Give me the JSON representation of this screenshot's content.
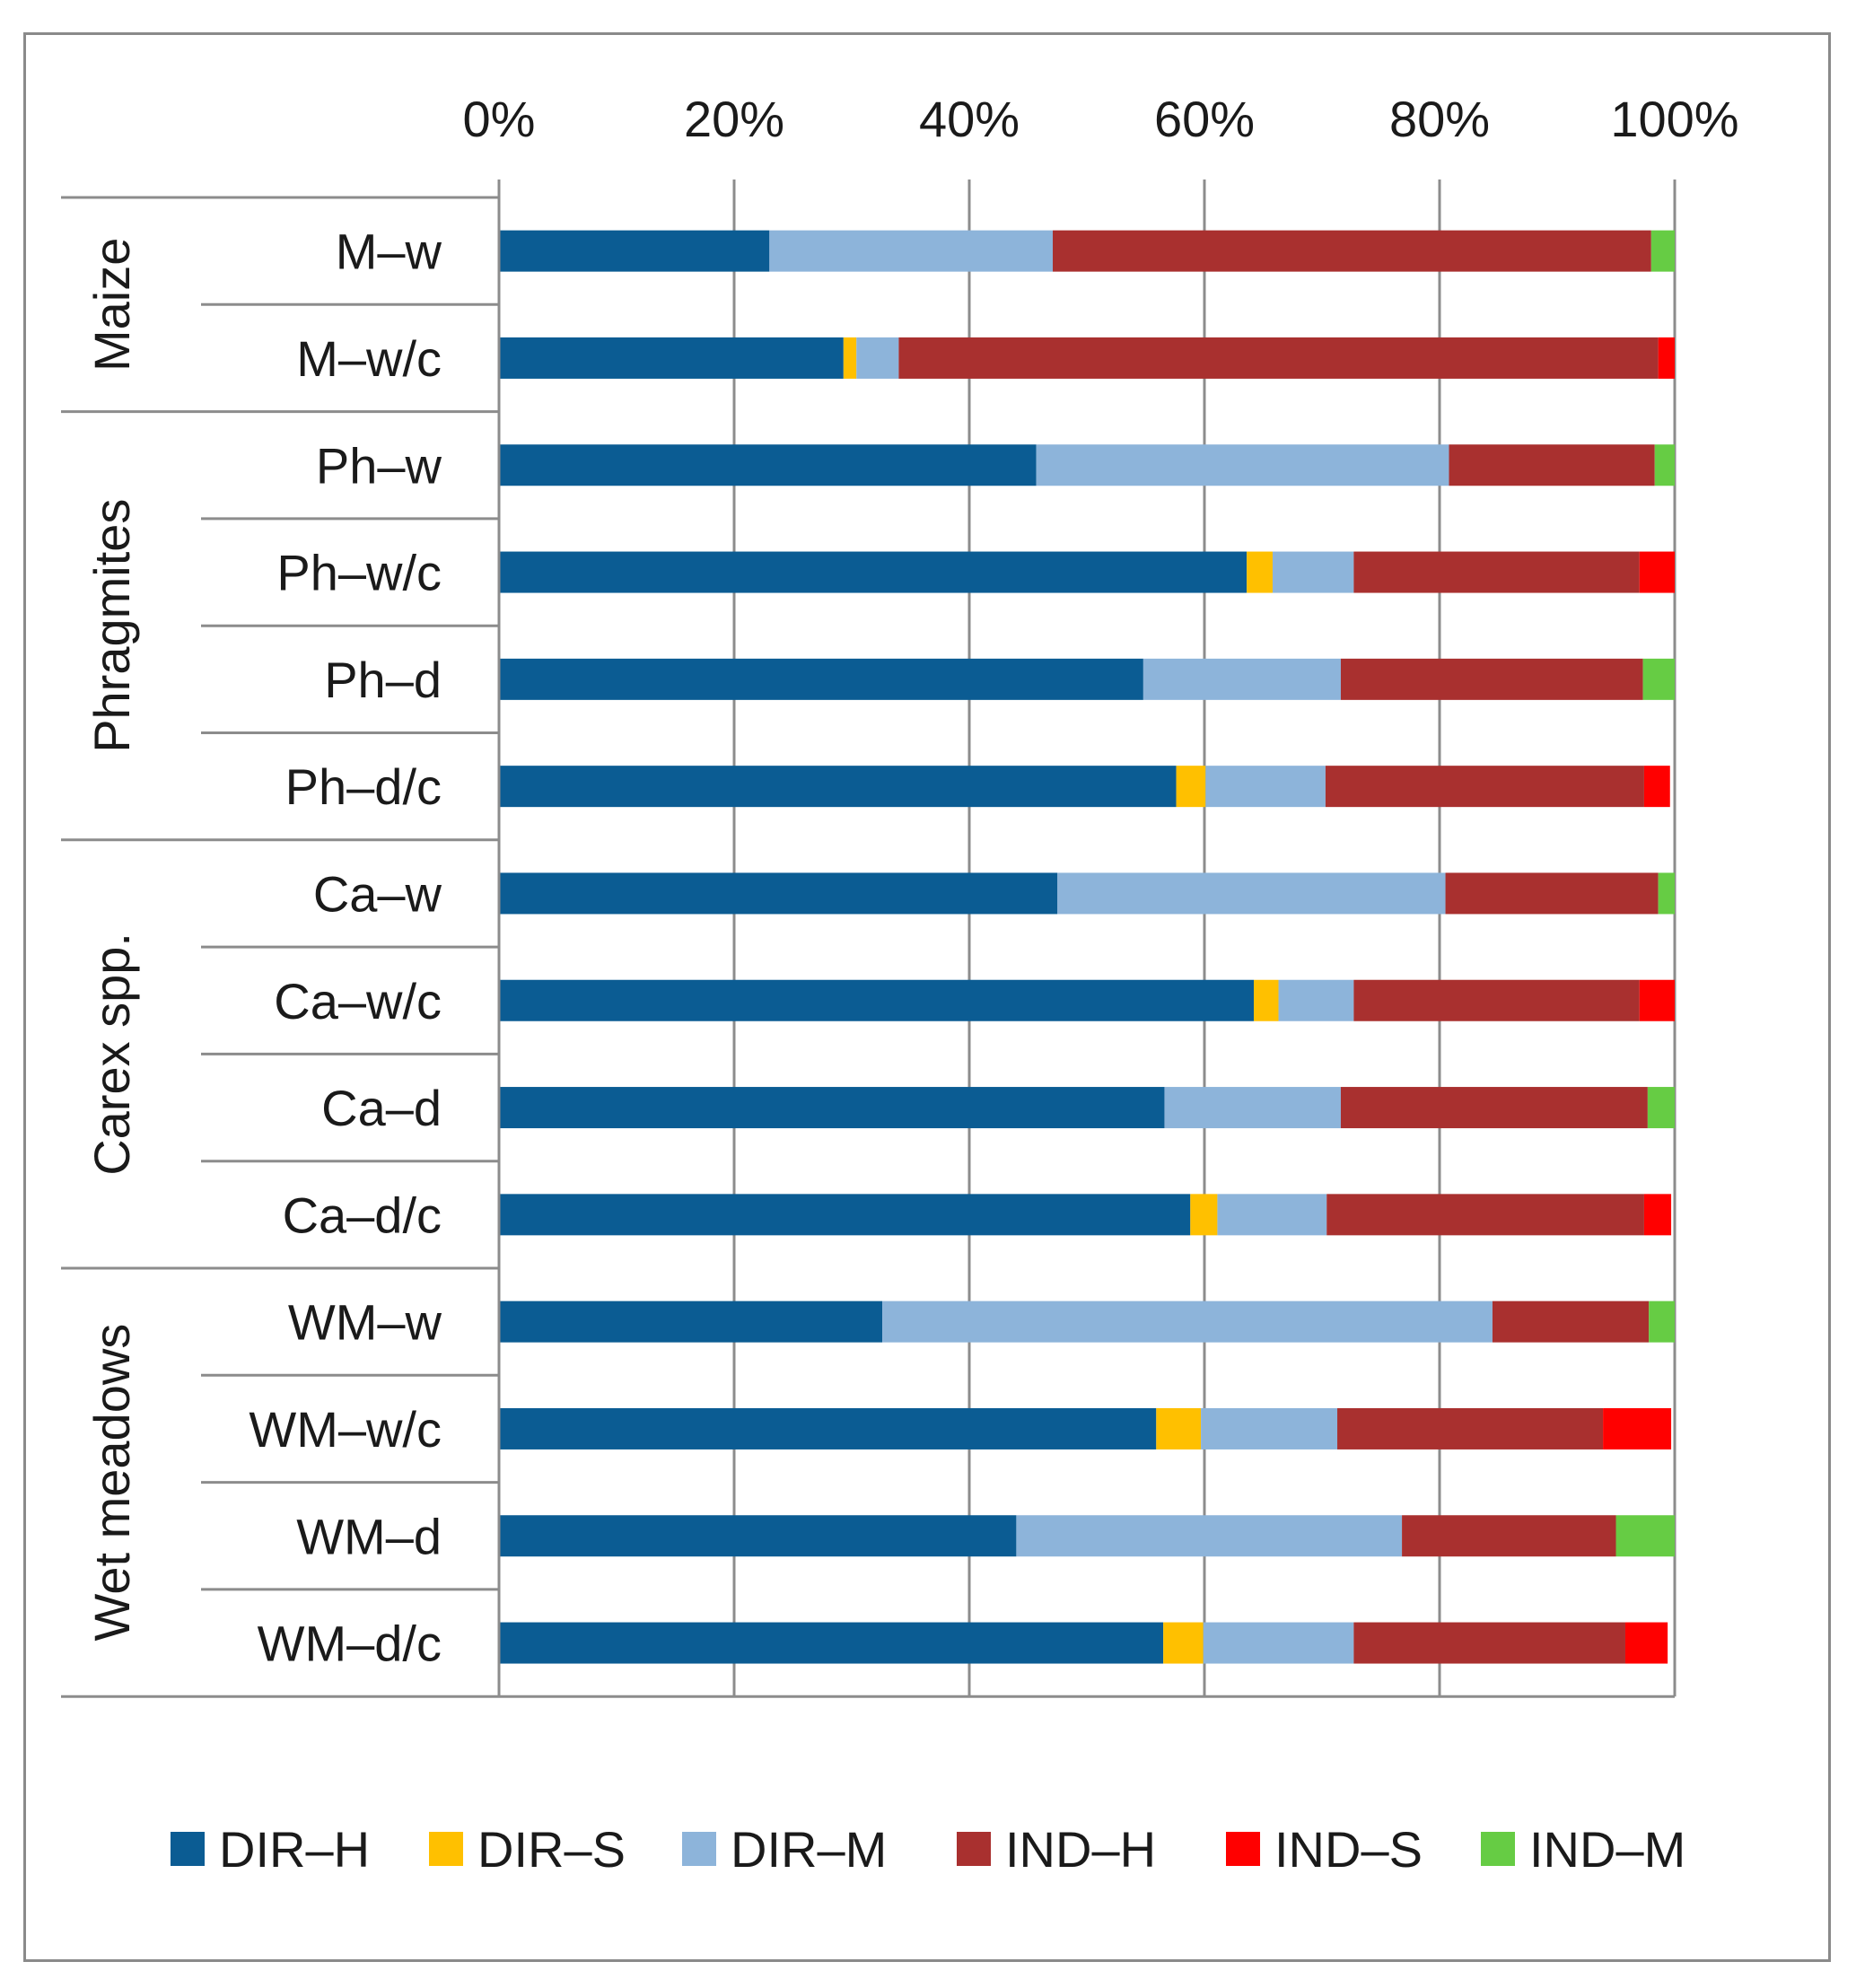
{
  "chart_data": {
    "type": "bar",
    "orientation": "horizontal",
    "stacked": "percent",
    "title": "",
    "xlabel": "",
    "ylabel": "",
    "xlim": [
      0,
      100
    ],
    "x_ticks": [
      "0%",
      "20%",
      "40%",
      "60%",
      "80%",
      "100%"
    ],
    "x_tick_values": [
      0,
      20,
      40,
      60,
      80,
      100
    ],
    "x_axis_position": "top",
    "grid": true,
    "legend_position": "bottom",
    "groups": [
      {
        "name": "Maize",
        "rows": [
          "M–w",
          "M–w/c"
        ]
      },
      {
        "name": "Phragmites",
        "rows": [
          "Ph–w",
          "Ph–w/c",
          "Ph–d",
          "Ph–d/c"
        ]
      },
      {
        "name": "Carex spp.",
        "rows": [
          "Ca–w",
          "Ca–w/c",
          "Ca–d",
          "Ca–d/c"
        ]
      },
      {
        "name": "Wet meadows",
        "rows": [
          "WM–w",
          "WM–w/c",
          "WM–d",
          "WM–d/c"
        ]
      }
    ],
    "categories": [
      "M–w",
      "M–w/c",
      "Ph–w",
      "Ph–w/c",
      "Ph–d",
      "Ph–d/c",
      "Ca–w",
      "Ca–w/c",
      "Ca–d",
      "Ca–d/c",
      "WM–w",
      "WM–w/c",
      "WM–d",
      "WM–d/c"
    ],
    "series": [
      {
        "name": "DIR–H",
        "color": "#0B5C93",
        "values": [
          23,
          29.3,
          45.7,
          63.6,
          54.8,
          57.6,
          47.5,
          64.2,
          56.6,
          58.8,
          32.6,
          55.9,
          44,
          56.5
        ]
      },
      {
        "name": "DIR–S",
        "color": "#FFC000",
        "values": [
          0,
          1.1,
          0,
          2.2,
          0,
          2.5,
          0,
          2.1,
          0,
          2.3,
          0,
          3.8,
          0,
          3.4
        ]
      },
      {
        "name": "DIR–M",
        "color": "#8DB4DA",
        "values": [
          24.1,
          3.6,
          35.1,
          6.9,
          16.8,
          10.2,
          33,
          6.4,
          15,
          9.3,
          51.9,
          11.6,
          32.8,
          12.8
        ]
      },
      {
        "name": "IND–H",
        "color": "#A9302F",
        "values": [
          50.9,
          64.6,
          17.5,
          24.3,
          25.7,
          27.1,
          18.1,
          24.3,
          26.1,
          27,
          13.3,
          22.6,
          18.2,
          23.1
        ]
      },
      {
        "name": "IND–S",
        "color": "#FF0000",
        "values": [
          0,
          1.4,
          0,
          3,
          0,
          2.2,
          0,
          3,
          0,
          2.3,
          0,
          5.8,
          0,
          3.6
        ]
      },
      {
        "name": "IND–M",
        "color": "#66CC44",
        "values": [
          2,
          0,
          1.7,
          0,
          2.7,
          0,
          1.4,
          0,
          2.3,
          0,
          2.2,
          0,
          5,
          0
        ]
      }
    ]
  }
}
